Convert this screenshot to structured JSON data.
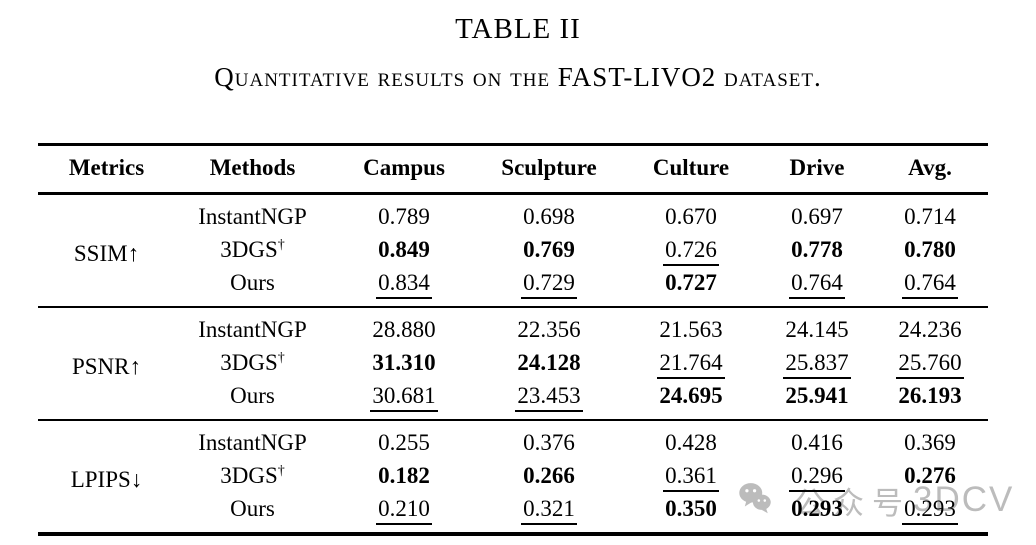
{
  "page": {
    "title": "TABLE II",
    "subtitle": "Quantitative results on the FAST-LIVO2 dataset."
  },
  "table": {
    "columns": [
      "Metrics",
      "Methods",
      "Campus",
      "Sculpture",
      "Culture",
      "Drive",
      "Avg."
    ],
    "groups": [
      {
        "metric": "SSIM↑",
        "rows": [
          {
            "method": "InstantNGP",
            "sup": "",
            "values": [
              {
                "text": "0.789",
                "style": "plain"
              },
              {
                "text": "0.698",
                "style": "plain"
              },
              {
                "text": "0.670",
                "style": "plain"
              },
              {
                "text": "0.697",
                "style": "plain"
              },
              {
                "text": "0.714",
                "style": "plain"
              }
            ]
          },
          {
            "method": "3DGS",
            "sup": "†",
            "values": [
              {
                "text": "0.849",
                "style": "bold"
              },
              {
                "text": "0.769",
                "style": "bold"
              },
              {
                "text": "0.726",
                "style": "underline"
              },
              {
                "text": "0.778",
                "style": "bold"
              },
              {
                "text": "0.780",
                "style": "bold"
              }
            ]
          },
          {
            "method": "Ours",
            "sup": "",
            "values": [
              {
                "text": "0.834",
                "style": "underline"
              },
              {
                "text": "0.729",
                "style": "underline"
              },
              {
                "text": "0.727",
                "style": "bold"
              },
              {
                "text": "0.764",
                "style": "underline"
              },
              {
                "text": "0.764",
                "style": "underline"
              }
            ]
          }
        ]
      },
      {
        "metric": "PSNR↑",
        "rows": [
          {
            "method": "InstantNGP",
            "sup": "",
            "values": [
              {
                "text": "28.880",
                "style": "plain"
              },
              {
                "text": "22.356",
                "style": "plain"
              },
              {
                "text": "21.563",
                "style": "plain"
              },
              {
                "text": "24.145",
                "style": "plain"
              },
              {
                "text": "24.236",
                "style": "plain"
              }
            ]
          },
          {
            "method": "3DGS",
            "sup": "†",
            "values": [
              {
                "text": "31.310",
                "style": "bold"
              },
              {
                "text": "24.128",
                "style": "bold"
              },
              {
                "text": "21.764",
                "style": "underline"
              },
              {
                "text": "25.837",
                "style": "underline"
              },
              {
                "text": "25.760",
                "style": "underline"
              }
            ]
          },
          {
            "method": "Ours",
            "sup": "",
            "values": [
              {
                "text": "30.681",
                "style": "underline"
              },
              {
                "text": "23.453",
                "style": "underline"
              },
              {
                "text": "24.695",
                "style": "bold"
              },
              {
                "text": "25.941",
                "style": "bold"
              },
              {
                "text": "26.193",
                "style": "bold"
              }
            ]
          }
        ]
      },
      {
        "metric": "LPIPS↓",
        "rows": [
          {
            "method": "InstantNGP",
            "sup": "",
            "values": [
              {
                "text": "0.255",
                "style": "plain"
              },
              {
                "text": "0.376",
                "style": "plain"
              },
              {
                "text": "0.428",
                "style": "plain"
              },
              {
                "text": "0.416",
                "style": "plain"
              },
              {
                "text": "0.369",
                "style": "plain"
              }
            ]
          },
          {
            "method": "3DGS",
            "sup": "†",
            "values": [
              {
                "text": "0.182",
                "style": "bold"
              },
              {
                "text": "0.266",
                "style": "bold"
              },
              {
                "text": "0.361",
                "style": "underline"
              },
              {
                "text": "0.296",
                "style": "underline"
              },
              {
                "text": "0.276",
                "style": "bold"
              }
            ]
          },
          {
            "method": "Ours",
            "sup": "",
            "values": [
              {
                "text": "0.210",
                "style": "underline"
              },
              {
                "text": "0.321",
                "style": "underline"
              },
              {
                "text": "0.350",
                "style": "bold"
              },
              {
                "text": "0.293",
                "style": "bold"
              },
              {
                "text": "0.293",
                "style": "underline"
              }
            ]
          }
        ]
      }
    ]
  },
  "watermark": {
    "icon": "wechat-icon",
    "text_cn": "公众号",
    "text_en": "3DCV",
    "color": "#bcbcbc"
  }
}
